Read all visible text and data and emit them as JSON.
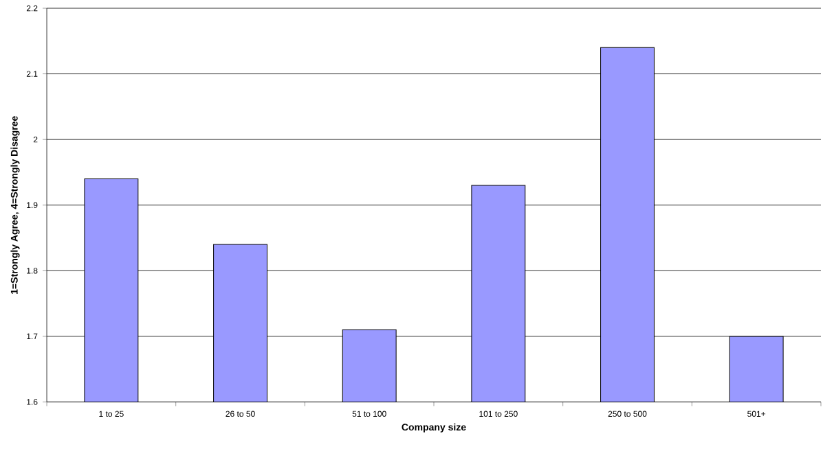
{
  "chart_data": {
    "type": "bar",
    "xlabel": "Company size",
    "ylabel": "1=Strongly Agree, 4=Strongly Disagree",
    "categories": [
      "1 to 25",
      "26 to 50",
      "51 to 100",
      "101 to 250",
      "250 to 500",
      "501+"
    ],
    "values": [
      1.94,
      1.84,
      1.71,
      1.93,
      2.14,
      1.7
    ],
    "color": "#9999ff",
    "ylim": [
      1.6,
      2.2
    ],
    "yticks": [
      1.6,
      1.7,
      1.8,
      1.9,
      2,
      2.1,
      2.2
    ],
    "grid": "y"
  }
}
